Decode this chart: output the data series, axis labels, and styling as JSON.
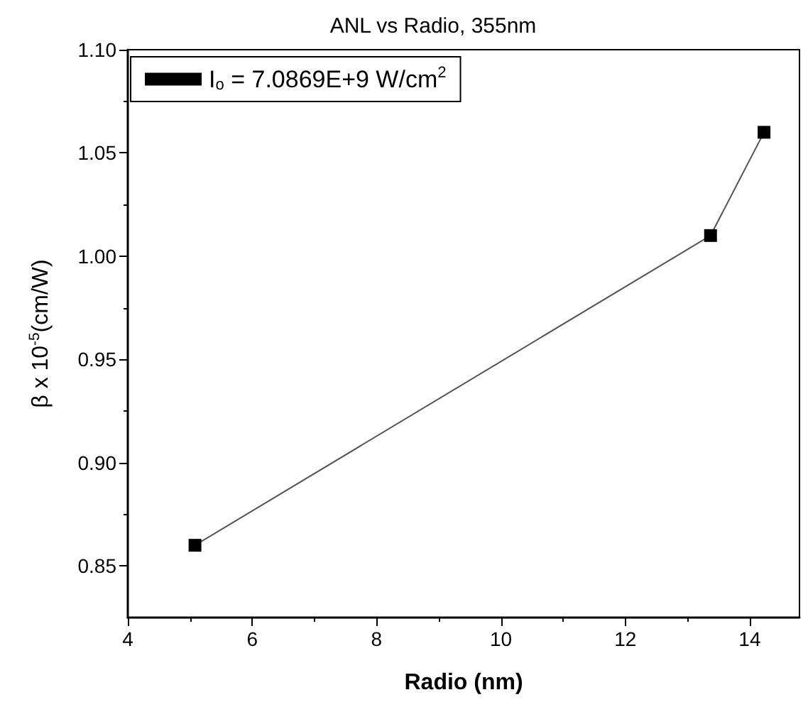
{
  "chart_data": {
    "type": "line",
    "title": "ANL vs Radio, 355nm",
    "xlabel": "Radio (nm)",
    "ylabel": "β x 10$^{-5}$(cm/W)",
    "series": [
      {
        "name": "I$_{o}$ = 7.0869E+9 W/cm$^{2}$",
        "color": "#000000",
        "x": [
          5.08,
          13.37,
          14.23
        ],
        "values": [
          0.86,
          1.01,
          1.06
        ]
      }
    ],
    "xlim": [
      4,
      14.8
    ],
    "xticks": [
      4,
      6,
      8,
      10,
      12,
      14
    ],
    "ylim": [
      0.825,
      1.1
    ],
    "yticks": [
      {
        "value": 0.85,
        "label": "0.85"
      },
      {
        "value": 0.9,
        "label": "0.90"
      },
      {
        "value": 0.95,
        "label": "0.95"
      },
      {
        "value": 1.0,
        "label": "1.00"
      },
      {
        "value": 1.05,
        "label": "1.05"
      },
      {
        "value": 1.1,
        "label": "1.10"
      }
    ],
    "legend": "top left",
    "marker": "square",
    "line_style": "solid",
    "grid": false
  }
}
